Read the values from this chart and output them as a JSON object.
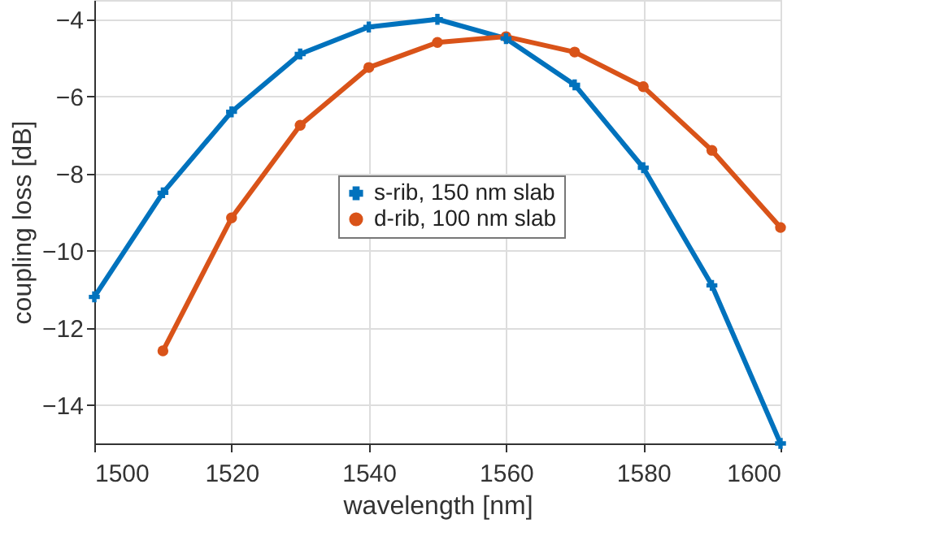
{
  "chart_data": {
    "type": "line",
    "xlabel": "wavelength [nm]",
    "ylabel": "coupling loss [dB]",
    "x": [
      1500,
      1510,
      1520,
      1530,
      1540,
      1550,
      1560,
      1570,
      1580,
      1590,
      1600
    ],
    "series": [
      {
        "name": "s-rib, 150 nm slab",
        "color": "#0072bd",
        "marker": "cross",
        "values": [
          -11.2,
          -8.5,
          -6.4,
          -4.9,
          -4.2,
          -4.0,
          -4.5,
          -5.7,
          -7.85,
          -10.9,
          -15
        ]
      },
      {
        "name": "d-rib, 100 nm slab",
        "color": "#d95319",
        "marker": "circle",
        "x": [
          1510,
          1520,
          1530,
          1540,
          1550,
          1560,
          1570,
          1580,
          1590,
          1600
        ],
        "values": [
          -12.6,
          -9.15,
          -6.75,
          -5.25,
          -4.6,
          -4.45,
          -4.85,
          -5.75,
          -7.4,
          -9.4
        ]
      }
    ],
    "xlim": [
      1500,
      1600
    ],
    "xticks": [
      1500,
      1520,
      1540,
      1560,
      1580,
      1600
    ],
    "ylim": [
      -15,
      -3.5
    ],
    "yticks": [
      -14,
      -12,
      -10,
      -8,
      -6,
      -4
    ],
    "grid": true,
    "legend": "center",
    "line_style": "solid"
  }
}
